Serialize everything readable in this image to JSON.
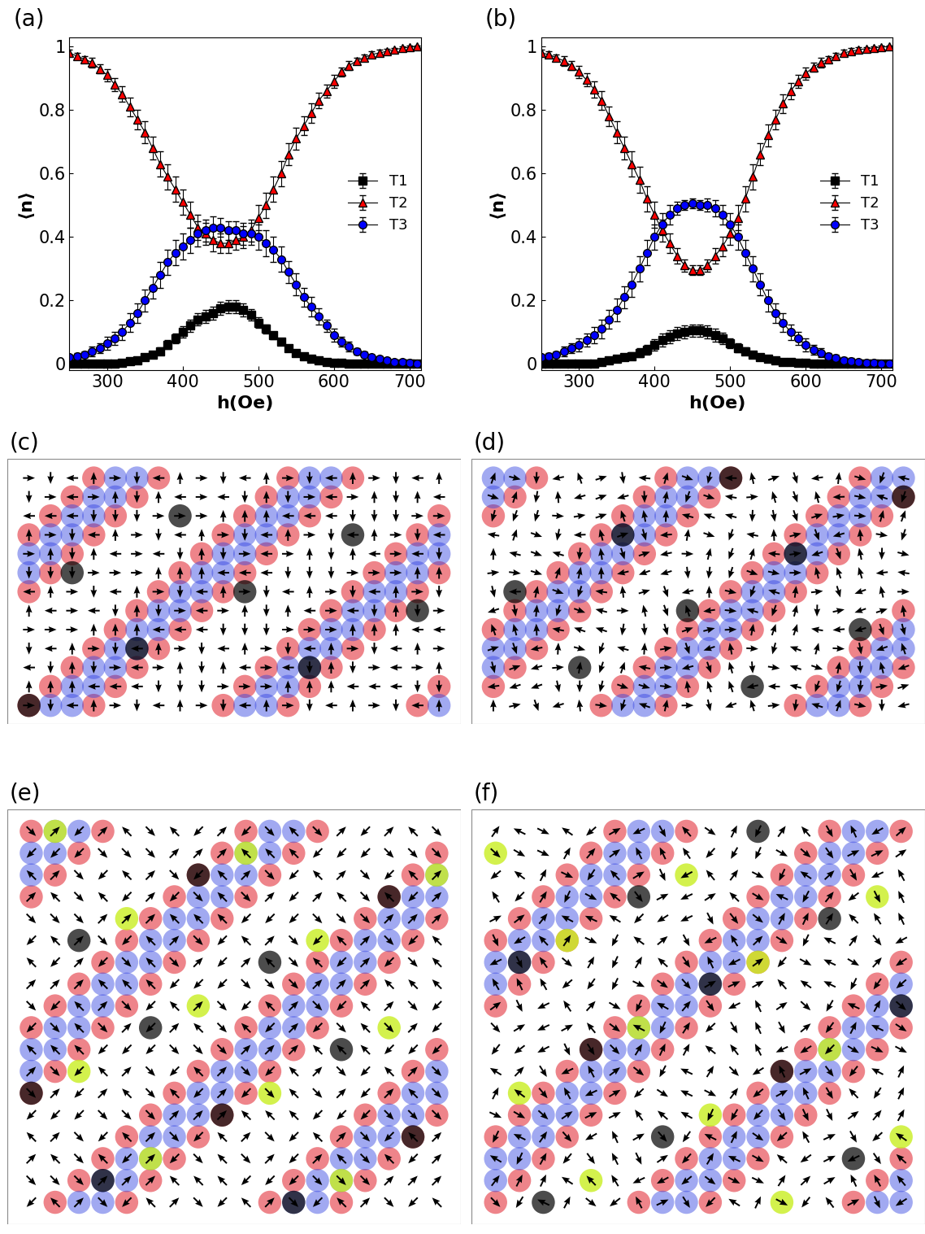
{
  "chart_data": [
    {
      "type": "line",
      "title": "(a)",
      "x_label": "h(Oe)",
      "y_label": "⟨n⟩",
      "x": [
        250,
        260,
        270,
        280,
        290,
        300,
        310,
        320,
        330,
        340,
        350,
        360,
        370,
        380,
        390,
        400,
        410,
        420,
        430,
        440,
        450,
        460,
        470,
        480,
        490,
        500,
        510,
        520,
        530,
        540,
        550,
        560,
        570,
        580,
        590,
        600,
        610,
        620,
        630,
        640,
        650,
        660,
        670,
        680,
        690,
        700,
        710
      ],
      "xlim": [
        250,
        715
      ],
      "xticks": [
        300,
        400,
        500,
        600,
        700
      ],
      "ylim": [
        -0.02,
        1.03
      ],
      "yticks": [
        0,
        0.2,
        0.4,
        0.6,
        0.8,
        1
      ],
      "legend": "center right",
      "series": [
        {
          "name": "T1",
          "color": "#000000",
          "marker": "square",
          "values": [
            0,
            0,
            0,
            0,
            0,
            0.001,
            0.002,
            0.003,
            0.008,
            0.012,
            0.02,
            0.03,
            0.04,
            0.06,
            0.08,
            0.1,
            0.12,
            0.14,
            0.15,
            0.16,
            0.175,
            0.18,
            0.18,
            0.17,
            0.155,
            0.13,
            0.11,
            0.09,
            0.07,
            0.05,
            0.035,
            0.025,
            0.017,
            0.01,
            0.006,
            0.004,
            0.003,
            0.002,
            0.002,
            0.001,
            0.001,
            0.001,
            0,
            0,
            0,
            0,
            0
          ],
          "errors": [
            0.002,
            0.002,
            0.002,
            0.002,
            0.002,
            0.003,
            0.003,
            0.004,
            0.005,
            0.006,
            0.008,
            0.01,
            0.012,
            0.014,
            0.016,
            0.018,
            0.02,
            0.02,
            0.02,
            0.02,
            0.02,
            0.02,
            0.02,
            0.02,
            0.018,
            0.016,
            0.014,
            0.012,
            0.01,
            0.008,
            0.006,
            0.005,
            0.004,
            0.003,
            0.003,
            0.002,
            0.002,
            0.002,
            0.002,
            0.002,
            0.002,
            0.002,
            0.002,
            0.002,
            0.002,
            0.002,
            0.002
          ]
        },
        {
          "name": "T2",
          "color": "#ff0000",
          "marker": "triangle",
          "values": [
            0.98,
            0.97,
            0.96,
            0.95,
            0.93,
            0.91,
            0.88,
            0.85,
            0.81,
            0.77,
            0.73,
            0.68,
            0.63,
            0.59,
            0.55,
            0.51,
            0.47,
            0.43,
            0.41,
            0.39,
            0.38,
            0.38,
            0.39,
            0.4,
            0.42,
            0.46,
            0.5,
            0.55,
            0.6,
            0.66,
            0.71,
            0.75,
            0.79,
            0.83,
            0.86,
            0.89,
            0.92,
            0.94,
            0.955,
            0.965,
            0.975,
            0.98,
            0.985,
            0.99,
            0.995,
            0.998,
            1.0
          ],
          "errors": [
            0.01,
            0.01,
            0.01,
            0.015,
            0.015,
            0.02,
            0.02,
            0.025,
            0.03,
            0.03,
            0.035,
            0.035,
            0.04,
            0.04,
            0.04,
            0.04,
            0.04,
            0.04,
            0.035,
            0.035,
            0.03,
            0.03,
            0.03,
            0.035,
            0.035,
            0.04,
            0.04,
            0.04,
            0.04,
            0.035,
            0.035,
            0.03,
            0.03,
            0.025,
            0.02,
            0.02,
            0.015,
            0.015,
            0.01,
            0.01,
            0.01,
            0.01,
            0.008,
            0.006,
            0.005,
            0.004,
            0.003
          ]
        },
        {
          "name": "T3",
          "color": "#0000ff",
          "marker": "circle",
          "values": [
            0.02,
            0.025,
            0.03,
            0.04,
            0.05,
            0.065,
            0.08,
            0.1,
            0.13,
            0.16,
            0.2,
            0.24,
            0.28,
            0.32,
            0.35,
            0.37,
            0.39,
            0.41,
            0.42,
            0.43,
            0.43,
            0.42,
            0.42,
            0.41,
            0.41,
            0.4,
            0.38,
            0.36,
            0.33,
            0.29,
            0.25,
            0.21,
            0.18,
            0.15,
            0.12,
            0.09,
            0.07,
            0.055,
            0.04,
            0.03,
            0.02,
            0.015,
            0.01,
            0.007,
            0.005,
            0.003,
            0.002
          ],
          "errors": [
            0.01,
            0.01,
            0.01,
            0.015,
            0.015,
            0.02,
            0.02,
            0.025,
            0.03,
            0.03,
            0.035,
            0.035,
            0.04,
            0.04,
            0.04,
            0.04,
            0.04,
            0.04,
            0.035,
            0.035,
            0.03,
            0.03,
            0.03,
            0.035,
            0.035,
            0.04,
            0.04,
            0.04,
            0.04,
            0.035,
            0.035,
            0.03,
            0.03,
            0.025,
            0.02,
            0.02,
            0.015,
            0.015,
            0.01,
            0.01,
            0.01,
            0.01,
            0.008,
            0.006,
            0.005,
            0.004,
            0.003
          ]
        }
      ]
    },
    {
      "type": "line",
      "title": "(b)",
      "x_label": "h(Oe)",
      "y_label": "⟨n⟩",
      "x": [
        250,
        260,
        270,
        280,
        290,
        300,
        310,
        320,
        330,
        340,
        350,
        360,
        370,
        380,
        390,
        400,
        410,
        420,
        430,
        440,
        450,
        460,
        470,
        480,
        490,
        500,
        510,
        520,
        530,
        540,
        550,
        560,
        570,
        580,
        590,
        600,
        610,
        620,
        630,
        640,
        650,
        660,
        670,
        680,
        690,
        700,
        710
      ],
      "xlim": [
        250,
        715
      ],
      "xticks": [
        300,
        400,
        500,
        600,
        700
      ],
      "ylim": [
        -0.02,
        1.03
      ],
      "yticks": [
        0,
        0.2,
        0.4,
        0.6,
        0.8,
        1
      ],
      "legend": "center right",
      "series": [
        {
          "name": "T1",
          "color": "#000000",
          "marker": "square",
          "values": [
            0,
            0,
            0,
            0,
            0,
            0,
            0.001,
            0.002,
            0.005,
            0.01,
            0.015,
            0.02,
            0.025,
            0.035,
            0.045,
            0.06,
            0.075,
            0.085,
            0.095,
            0.1,
            0.105,
            0.105,
            0.1,
            0.09,
            0.08,
            0.065,
            0.05,
            0.04,
            0.03,
            0.02,
            0.015,
            0.01,
            0.007,
            0.005,
            0.004,
            0.003,
            0.002,
            0.002,
            0.001,
            0.001,
            0.001,
            0,
            0,
            0,
            0,
            0,
            0
          ],
          "errors": [
            0.002,
            0.002,
            0.002,
            0.002,
            0.002,
            0.003,
            0.003,
            0.004,
            0.005,
            0.006,
            0.008,
            0.01,
            0.012,
            0.014,
            0.016,
            0.018,
            0.02,
            0.02,
            0.02,
            0.02,
            0.02,
            0.02,
            0.02,
            0.02,
            0.018,
            0.016,
            0.014,
            0.012,
            0.01,
            0.008,
            0.006,
            0.005,
            0.004,
            0.003,
            0.003,
            0.002,
            0.002,
            0.002,
            0.002,
            0.002,
            0.002,
            0.002,
            0.002,
            0.002,
            0.002,
            0.002,
            0.002
          ]
        },
        {
          "name": "T2",
          "color": "#ff0000",
          "marker": "triangle",
          "values": [
            0.98,
            0.975,
            0.965,
            0.955,
            0.94,
            0.92,
            0.895,
            0.865,
            0.83,
            0.78,
            0.73,
            0.68,
            0.63,
            0.58,
            0.52,
            0.47,
            0.42,
            0.38,
            0.34,
            0.31,
            0.295,
            0.295,
            0.31,
            0.34,
            0.37,
            0.41,
            0.46,
            0.52,
            0.59,
            0.66,
            0.72,
            0.77,
            0.82,
            0.86,
            0.89,
            0.915,
            0.935,
            0.95,
            0.96,
            0.97,
            0.98,
            0.985,
            0.99,
            0.993,
            0.996,
            0.998,
            1.0
          ],
          "errors": [
            0.01,
            0.01,
            0.01,
            0.015,
            0.015,
            0.02,
            0.02,
            0.025,
            0.03,
            0.03,
            0.035,
            0.035,
            0.04,
            0.04,
            0.04,
            0.04,
            0.035,
            0.03,
            0.025,
            0.02,
            0.015,
            0.015,
            0.02,
            0.025,
            0.03,
            0.035,
            0.04,
            0.04,
            0.04,
            0.035,
            0.035,
            0.03,
            0.03,
            0.025,
            0.02,
            0.02,
            0.015,
            0.015,
            0.01,
            0.01,
            0.01,
            0.01,
            0.008,
            0.006,
            0.005,
            0.004,
            0.003
          ]
        },
        {
          "name": "T3",
          "color": "#0000ff",
          "marker": "circle",
          "values": [
            0.02,
            0.025,
            0.03,
            0.04,
            0.05,
            0.06,
            0.075,
            0.09,
            0.11,
            0.14,
            0.17,
            0.21,
            0.25,
            0.3,
            0.35,
            0.4,
            0.44,
            0.47,
            0.49,
            0.5,
            0.505,
            0.5,
            0.5,
            0.49,
            0.47,
            0.44,
            0.4,
            0.35,
            0.3,
            0.25,
            0.2,
            0.16,
            0.13,
            0.1,
            0.08,
            0.06,
            0.045,
            0.035,
            0.025,
            0.018,
            0.012,
            0.008,
            0.006,
            0.004,
            0.003,
            0.002,
            0.001
          ],
          "errors": [
            0.01,
            0.01,
            0.01,
            0.015,
            0.015,
            0.02,
            0.02,
            0.025,
            0.03,
            0.03,
            0.035,
            0.035,
            0.04,
            0.04,
            0.04,
            0.04,
            0.035,
            0.03,
            0.02,
            0.015,
            0.015,
            0.015,
            0.02,
            0.025,
            0.03,
            0.035,
            0.04,
            0.04,
            0.04,
            0.035,
            0.035,
            0.03,
            0.03,
            0.025,
            0.02,
            0.02,
            0.015,
            0.015,
            0.01,
            0.01,
            0.01,
            0.01,
            0.008,
            0.006,
            0.005,
            0.004,
            0.003
          ]
        }
      ]
    }
  ],
  "panels": [
    "(c)",
    "(d)",
    "(e)",
    "(f)"
  ]
}
